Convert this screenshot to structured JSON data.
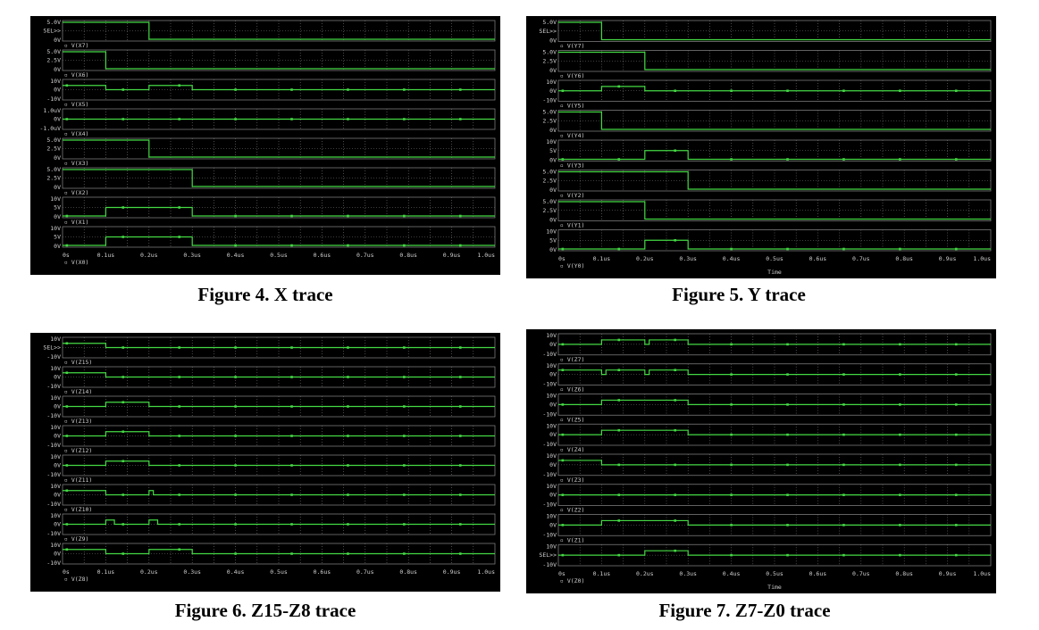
{
  "colors": {
    "background": "#000000",
    "trace": "#44d944",
    "grid": "#7a7a7a",
    "text": "#cfcfcf",
    "page": "#ffffff"
  },
  "x_axis": {
    "ticks": [
      "0s",
      "0.1us",
      "0.2us",
      "0.3us",
      "0.4us",
      "0.5us",
      "0.6us",
      "0.7us",
      "0.8us",
      "0.9us",
      "1.0us"
    ],
    "time_label": "Time"
  },
  "figures": [
    {
      "caption": "Figure 4. X trace",
      "chart_data": {
        "type": "line",
        "xlim": [
          0,
          1.0
        ],
        "x_unit": "us",
        "rows": [
          {
            "name": "SEL>>",
            "yticks": [
              "5.0V",
              "SEL>>",
              "0V"
            ],
            "ylim": [
              0,
              5
            ],
            "steps": [
              [
                0,
                5
              ],
              [
                0.2,
                0
              ]
            ],
            "markers": false
          },
          {
            "name": "V(X7)",
            "yticks": [
              "5.0V",
              "2.5V",
              "0V"
            ],
            "ylim": [
              0,
              5
            ],
            "steps": [
              [
                0,
                5
              ],
              [
                0.1,
                0
              ]
            ],
            "markers": false
          },
          {
            "name": "V(X6)",
            "yticks": [
              "10V",
              "0V",
              "-10V"
            ],
            "ylim": [
              -10,
              10
            ],
            "steps": [
              [
                0,
                5
              ],
              [
                0.1,
                0
              ],
              [
                0.2,
                5
              ],
              [
                0.3,
                0
              ]
            ],
            "markers": true
          },
          {
            "name": "V(X5)",
            "yticks": [
              "1.0uV",
              "0V",
              "-1.0uV"
            ],
            "ylim": [
              -1,
              1
            ],
            "steps": [
              [
                0,
                0
              ]
            ],
            "markers": true
          },
          {
            "name": "V(X4)",
            "yticks": [
              "5.0V",
              "2.5V",
              "0V"
            ],
            "ylim": [
              0,
              5
            ],
            "steps": [
              [
                0,
                5
              ],
              [
                0.2,
                0
              ]
            ],
            "markers": false
          },
          {
            "name": "V(X3)",
            "yticks": [
              "5.0V",
              "2.5V",
              "0V"
            ],
            "ylim": [
              0,
              5
            ],
            "steps": [
              [
                0,
                5
              ],
              [
                0.3,
                0
              ]
            ],
            "markers": false
          },
          {
            "name": "V(X2)",
            "yticks": [
              "10V",
              "5V",
              "0V"
            ],
            "ylim": [
              0,
              10
            ],
            "steps": [
              [
                0,
                0
              ],
              [
                0.1,
                5
              ],
              [
                0.3,
                0
              ]
            ],
            "markers": true
          },
          {
            "name": "V(X1)",
            "yticks": [
              "10V",
              "5V",
              "0V"
            ],
            "ylim": [
              0,
              10
            ],
            "steps": [
              [
                0,
                0
              ],
              [
                0.1,
                5
              ],
              [
                0.3,
                0
              ]
            ],
            "markers": true
          }
        ],
        "bottom_label": "V(X0)"
      }
    },
    {
      "caption": "Figure 5. Y trace",
      "chart_data": {
        "type": "line",
        "xlim": [
          0,
          1.0
        ],
        "x_unit": "us",
        "rows": [
          {
            "name": "SEL>>",
            "yticks": [
              "5.0V",
              "SEL>>",
              "0V"
            ],
            "ylim": [
              0,
              5
            ],
            "steps": [
              [
                0,
                5
              ],
              [
                0.1,
                0
              ]
            ],
            "markers": false
          },
          {
            "name": "V(Y7)",
            "yticks": [
              "5.0V",
              "2.5V",
              "0V"
            ],
            "ylim": [
              0,
              5
            ],
            "steps": [
              [
                0,
                5
              ],
              [
                0.2,
                0
              ]
            ],
            "markers": false
          },
          {
            "name": "V(Y6)",
            "yticks": [
              "10V",
              "0V",
              "-10V"
            ],
            "ylim": [
              -10,
              10
            ],
            "steps": [
              [
                0,
                0
              ],
              [
                0.1,
                5
              ],
              [
                0.2,
                0
              ]
            ],
            "markers": true
          },
          {
            "name": "V(Y5)",
            "yticks": [
              "5.0V",
              "2.5V",
              "0V"
            ],
            "ylim": [
              0,
              5
            ],
            "steps": [
              [
                0,
                5
              ],
              [
                0.1,
                0
              ]
            ],
            "markers": false
          },
          {
            "name": "V(Y4)",
            "yticks": [
              "10V",
              "5V",
              "0V"
            ],
            "ylim": [
              0,
              10
            ],
            "steps": [
              [
                0,
                0
              ],
              [
                0.2,
                5
              ],
              [
                0.3,
                0
              ]
            ],
            "markers": true
          },
          {
            "name": "V(Y3)",
            "yticks": [
              "5.0V",
              "2.5V",
              "0V"
            ],
            "ylim": [
              0,
              5
            ],
            "steps": [
              [
                0,
                5
              ],
              [
                0.3,
                0
              ]
            ],
            "markers": false
          },
          {
            "name": "V(Y2)",
            "yticks": [
              "5.0V",
              "2.5V",
              "0V"
            ],
            "ylim": [
              0,
              5
            ],
            "steps": [
              [
                0,
                5
              ],
              [
                0.2,
                0
              ]
            ],
            "markers": false
          },
          {
            "name": "V(Y1)",
            "yticks": [
              "10V",
              "5V",
              "0V"
            ],
            "ylim": [
              0,
              10
            ],
            "steps": [
              [
                0,
                0
              ],
              [
                0.2,
                5
              ],
              [
                0.3,
                0
              ]
            ],
            "markers": true
          }
        ],
        "bottom_label": "V(Y0)"
      }
    },
    {
      "caption": "Figure 6. Z15-Z8 trace",
      "chart_data": {
        "type": "line",
        "xlim": [
          0,
          1.0
        ],
        "x_unit": "us",
        "rows": [
          {
            "name": "SEL>>",
            "yticks": [
              "10V",
              "SEL>>",
              "-10V"
            ],
            "ylim": [
              -10,
              10
            ],
            "steps": [
              [
                0,
                5
              ],
              [
                0.1,
                0
              ]
            ],
            "markers": true
          },
          {
            "name": "V(Z15)",
            "yticks": [
              "10V",
              "0V",
              "-10V"
            ],
            "ylim": [
              -10,
              10
            ],
            "steps": [
              [
                0,
                5
              ],
              [
                0.1,
                0
              ]
            ],
            "markers": true
          },
          {
            "name": "V(Z14)",
            "yticks": [
              "10V",
              "0V",
              "-10V"
            ],
            "ylim": [
              -10,
              10
            ],
            "steps": [
              [
                0,
                0
              ],
              [
                0.1,
                5
              ],
              [
                0.2,
                0
              ]
            ],
            "markers": true
          },
          {
            "name": "V(Z13)",
            "yticks": [
              "10V",
              "0V",
              "-10V"
            ],
            "ylim": [
              -10,
              10
            ],
            "steps": [
              [
                0,
                0
              ],
              [
                0.1,
                5
              ],
              [
                0.2,
                0
              ]
            ],
            "markers": true
          },
          {
            "name": "V(Z12)",
            "yticks": [
              "10V",
              "0V",
              "-10V"
            ],
            "ylim": [
              -10,
              10
            ],
            "steps": [
              [
                0,
                0
              ],
              [
                0.1,
                5
              ],
              [
                0.2,
                0
              ]
            ],
            "markers": true
          },
          {
            "name": "V(Z11)",
            "yticks": [
              "10V",
              "0V",
              "-10V"
            ],
            "ylim": [
              -10,
              10
            ],
            "steps": [
              [
                0,
                5
              ],
              [
                0.1,
                0
              ],
              [
                0.2,
                5
              ],
              [
                0.21,
                0
              ]
            ],
            "markers": true
          },
          {
            "name": "V(Z10)",
            "yticks": [
              "10V",
              "0V",
              "-10V"
            ],
            "ylim": [
              -10,
              10
            ],
            "steps": [
              [
                0,
                0
              ],
              [
                0.1,
                5
              ],
              [
                0.12,
                0
              ],
              [
                0.2,
                5
              ],
              [
                0.22,
                0
              ]
            ],
            "markers": true
          },
          {
            "name": "V(Z9)",
            "yticks": [
              "10V",
              "0V",
              "-10V"
            ],
            "ylim": [
              -10,
              10
            ],
            "steps": [
              [
                0,
                5
              ],
              [
                0.1,
                0
              ],
              [
                0.2,
                5
              ],
              [
                0.3,
                0
              ]
            ],
            "markers": true
          }
        ],
        "bottom_label": "V(Z8)"
      }
    },
    {
      "caption": "Figure 7. Z7-Z0 trace",
      "chart_data": {
        "type": "line",
        "xlim": [
          0,
          1.0
        ],
        "x_unit": "us",
        "rows": [
          {
            "name": "V(Z7) row top",
            "yticks": [
              "10V",
              "0V",
              "-10V"
            ],
            "ylim": [
              -10,
              10
            ],
            "steps": [
              [
                0,
                0
              ],
              [
                0.1,
                5
              ],
              [
                0.2,
                0
              ],
              [
                0.21,
                5
              ],
              [
                0.3,
                0
              ]
            ],
            "markers": true
          },
          {
            "name": "V(Z7)",
            "yticks": [
              "10V",
              "0V",
              "-10V"
            ],
            "ylim": [
              -10,
              10
            ],
            "steps": [
              [
                0,
                5
              ],
              [
                0.1,
                0
              ],
              [
                0.11,
                5
              ],
              [
                0.2,
                0
              ],
              [
                0.21,
                5
              ],
              [
                0.3,
                0
              ]
            ],
            "markers": true
          },
          {
            "name": "V(Z6)",
            "yticks": [
              "10V",
              "0V",
              "-10V"
            ],
            "ylim": [
              -10,
              10
            ],
            "steps": [
              [
                0,
                0
              ],
              [
                0.1,
                5
              ],
              [
                0.3,
                0
              ]
            ],
            "markers": true
          },
          {
            "name": "V(Z5)",
            "yticks": [
              "10V",
              "0V",
              "-10V"
            ],
            "ylim": [
              -10,
              10
            ],
            "steps": [
              [
                0,
                0
              ],
              [
                0.1,
                5
              ],
              [
                0.3,
                0
              ]
            ],
            "markers": true
          },
          {
            "name": "V(Z4)",
            "yticks": [
              "10V",
              "0V",
              "-10V"
            ],
            "ylim": [
              -10,
              10
            ],
            "steps": [
              [
                0,
                5
              ],
              [
                0.1,
                0
              ]
            ],
            "markers": true
          },
          {
            "name": "V(Z3)",
            "yticks": [
              "10V",
              "0V",
              "-10V"
            ],
            "ylim": [
              -10,
              10
            ],
            "steps": [
              [
                0,
                0
              ]
            ],
            "markers": true
          },
          {
            "name": "V(Z2)",
            "yticks": [
              "10V",
              "0V",
              "-10V"
            ],
            "ylim": [
              -10,
              10
            ],
            "steps": [
              [
                0,
                0
              ],
              [
                0.1,
                5
              ],
              [
                0.3,
                0
              ]
            ],
            "markers": true
          },
          {
            "name": "V(Z1)",
            "yticks": [
              "10V",
              "SEL>>",
              "-10V"
            ],
            "ylim": [
              -10,
              10
            ],
            "steps": [
              [
                0,
                0
              ],
              [
                0.2,
                5
              ],
              [
                0.3,
                0
              ]
            ],
            "markers": true
          }
        ],
        "bottom_label": "V(Z0)"
      }
    }
  ]
}
